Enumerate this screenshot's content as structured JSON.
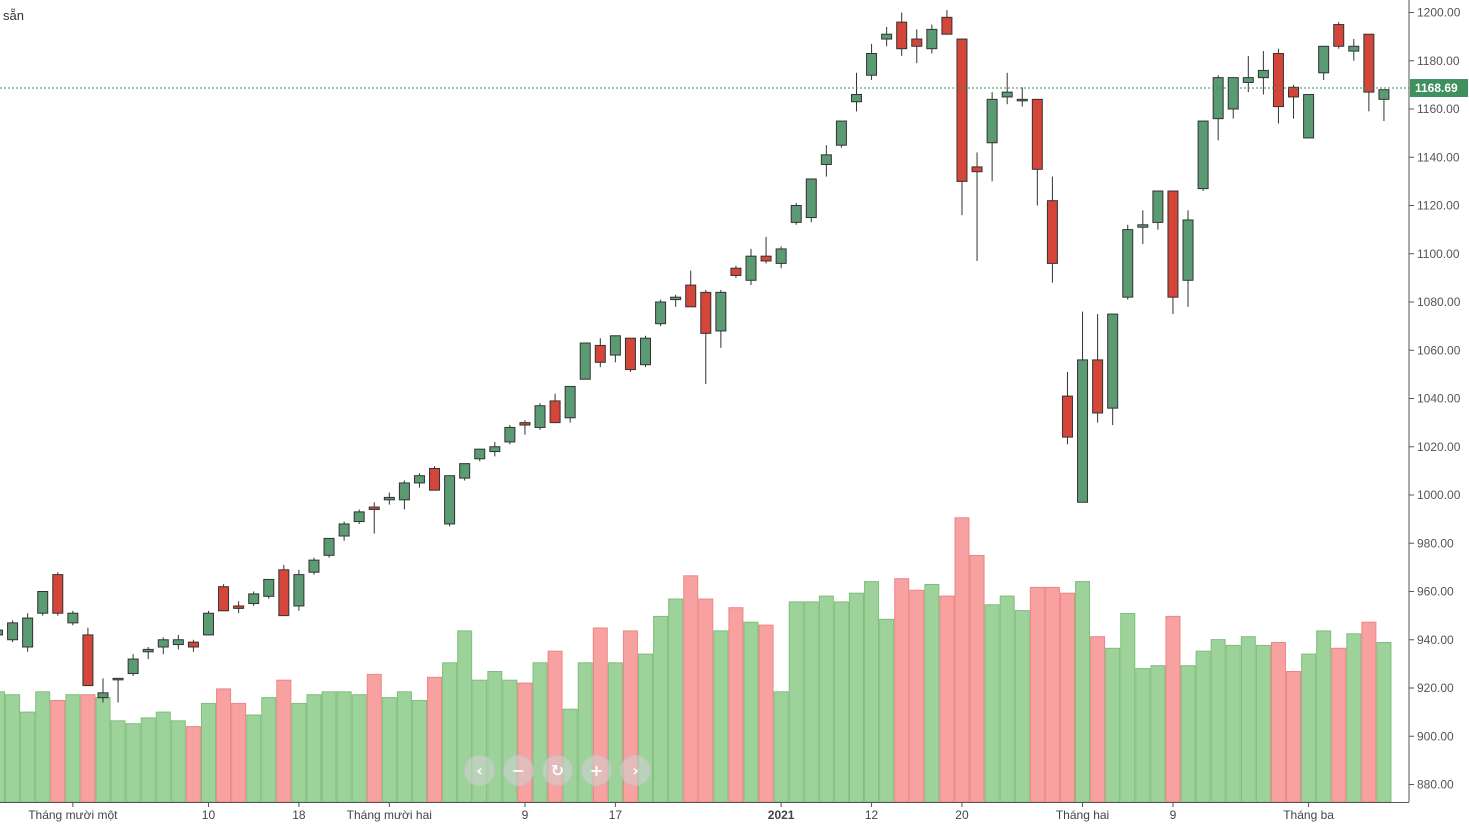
{
  "header": {
    "corner_label": "sẵn"
  },
  "navigation": {
    "buttons": [
      {
        "name": "scroll-left",
        "glyph": "‹"
      },
      {
        "name": "zoom-out",
        "glyph": "−"
      },
      {
        "name": "reset",
        "glyph": "↻"
      },
      {
        "name": "zoom-in",
        "glyph": "+"
      },
      {
        "name": "scroll-right",
        "glyph": "›"
      }
    ]
  },
  "colors": {
    "up_body": "#5b9b73",
    "down_body": "#d5463a",
    "up_volume": "#9ed29b",
    "down_volume": "#f7a1a1",
    "current_price_bg": "#3f8f5f",
    "grid_text": "#555555"
  },
  "chart_data": {
    "type": "candlestick",
    "y_axis": {
      "side": "right",
      "ylim": [
        873,
        1204
      ],
      "ticks": [
        "880.00",
        "900.00",
        "920.00",
        "940.00",
        "960.00",
        "980.00",
        "1000.00",
        "1020.00",
        "1040.00",
        "1060.00",
        "1080.00",
        "1100.00",
        "1120.00",
        "1140.00",
        "1160.00",
        "1180.00",
        "1200.00"
      ]
    },
    "current_price": {
      "value": 1168.69,
      "label": "1168.69"
    },
    "x_axis": {
      "labels": [
        {
          "text": "Tháng mười một",
          "index": 5,
          "bold": false
        },
        {
          "text": "10",
          "index": 14,
          "bold": false
        },
        {
          "text": "18",
          "index": 20,
          "bold": false
        },
        {
          "text": "Tháng mười hai",
          "index": 26,
          "bold": false
        },
        {
          "text": "9",
          "index": 35,
          "bold": false
        },
        {
          "text": "17",
          "index": 41,
          "bold": false
        },
        {
          "text": "2021",
          "index": 52,
          "bold": true
        },
        {
          "text": "12",
          "index": 58,
          "bold": false
        },
        {
          "text": "20",
          "index": 64,
          "bold": false
        },
        {
          "text": "Tháng hai",
          "index": 72,
          "bold": false
        },
        {
          "text": "9",
          "index": 78,
          "bold": false
        },
        {
          "text": "Tháng ba",
          "index": 87,
          "bold": false
        }
      ]
    },
    "candles": [
      [
        0,
        942,
        945,
        941,
        944,
        0.38
      ],
      [
        1,
        940,
        948,
        939,
        947,
        0.37
      ],
      [
        2,
        937,
        951,
        935,
        949,
        0.31
      ],
      [
        3,
        951,
        960,
        950,
        960,
        0.38
      ],
      [
        4,
        967,
        968,
        950,
        951,
        0.35
      ],
      [
        5,
        947,
        952,
        946,
        951,
        0.37
      ],
      [
        6,
        942,
        945,
        922,
        921,
        0.37
      ],
      [
        7,
        916,
        924,
        914,
        918,
        0.36
      ],
      [
        8,
        924,
        924,
        914,
        924,
        0.28
      ],
      [
        9,
        926,
        934,
        925,
        932,
        0.27
      ],
      [
        10,
        935,
        937,
        932,
        936,
        0.29
      ],
      [
        11,
        937,
        941,
        934,
        940,
        0.31
      ],
      [
        12,
        938,
        942,
        936,
        940,
        0.28
      ],
      [
        13,
        939,
        940,
        935,
        937,
        0.26
      ],
      [
        14,
        942,
        952,
        942,
        951,
        0.34
      ],
      [
        15,
        962,
        963,
        952,
        952,
        0.39
      ],
      [
        16,
        954,
        956,
        951,
        953,
        0.34
      ],
      [
        17,
        955,
        960,
        954,
        959,
        0.3
      ],
      [
        18,
        958,
        965,
        957,
        965,
        0.36
      ],
      [
        19,
        969,
        971,
        950,
        950,
        0.42
      ],
      [
        20,
        954,
        969,
        952,
        967,
        0.34
      ],
      [
        21,
        968,
        974,
        967,
        973,
        0.37
      ],
      [
        22,
        975,
        982,
        974,
        982,
        0.38
      ],
      [
        23,
        983,
        989,
        981,
        988,
        0.38
      ],
      [
        24,
        989,
        994,
        988,
        993,
        0.37
      ],
      [
        25,
        995,
        997,
        984,
        994,
        0.44
      ],
      [
        26,
        998,
        1001,
        996,
        999,
        0.36
      ],
      [
        27,
        998,
        1006,
        994,
        1005,
        0.38
      ],
      [
        28,
        1005,
        1009,
        1003,
        1008,
        0.35
      ],
      [
        29,
        1011,
        1012,
        1002,
        1002,
        0.43
      ],
      [
        30,
        988,
        1008,
        987,
        1008,
        0.48
      ],
      [
        31,
        1007,
        1013,
        1006,
        1013,
        0.59
      ],
      [
        32,
        1015,
        1019,
        1014,
        1019,
        0.42
      ],
      [
        33,
        1018,
        1022,
        1016,
        1020,
        0.45
      ],
      [
        34,
        1022,
        1029,
        1021,
        1028,
        0.42
      ],
      [
        35,
        1030,
        1031,
        1025,
        1029,
        0.41
      ],
      [
        36,
        1028,
        1038,
        1027,
        1037,
        0.48
      ],
      [
        37,
        1039,
        1042,
        1030,
        1030,
        0.52
      ],
      [
        38,
        1032,
        1045,
        1030,
        1045,
        0.32
      ],
      [
        39,
        1048,
        1063,
        1048,
        1063,
        0.48
      ],
      [
        40,
        1062,
        1065,
        1053,
        1055,
        0.6
      ],
      [
        41,
        1058,
        1066,
        1055,
        1066,
        0.48
      ],
      [
        42,
        1065,
        1065,
        1051,
        1052,
        0.59
      ],
      [
        43,
        1054,
        1066,
        1053,
        1065,
        0.51
      ],
      [
        44,
        1071,
        1081,
        1070,
        1080,
        0.64
      ],
      [
        45,
        1081,
        1083,
        1078,
        1082,
        0.7
      ],
      [
        46,
        1087,
        1093,
        1078,
        1078,
        0.78
      ],
      [
        47,
        1084,
        1085,
        1046,
        1067,
        0.7
      ],
      [
        48,
        1068,
        1085,
        1061,
        1084,
        0.59
      ],
      [
        49,
        1094,
        1095,
        1090,
        1091,
        0.67
      ],
      [
        50,
        1089,
        1102,
        1087,
        1099,
        0.62
      ],
      [
        51,
        1099,
        1107,
        1096,
        1097,
        0.61
      ],
      [
        52,
        1096,
        1103,
        1094,
        1102,
        0.38
      ],
      [
        53,
        1113,
        1121,
        1112,
        1120,
        0.69
      ],
      [
        54,
        1115,
        1131,
        1113,
        1131,
        0.69
      ],
      [
        55,
        1137,
        1145,
        1132,
        1141,
        0.71
      ],
      [
        56,
        1145,
        1155,
        1144,
        1155,
        0.69
      ],
      [
        57,
        1163,
        1175,
        1159,
        1166,
        0.72
      ],
      [
        58,
        1174,
        1187,
        1172,
        1183,
        0.76
      ],
      [
        59,
        1189,
        1194,
        1186,
        1191,
        0.63
      ],
      [
        60,
        1196,
        1200,
        1182,
        1185,
        0.77
      ],
      [
        61,
        1189,
        1193,
        1179,
        1186,
        0.73
      ],
      [
        62,
        1185,
        1195,
        1183,
        1193,
        0.75
      ],
      [
        63,
        1198,
        1201,
        1191,
        1191,
        0.71
      ],
      [
        64,
        1189,
        1189,
        1116,
        1130,
        0.98
      ],
      [
        65,
        1136,
        1142,
        1097,
        1134,
        0.85
      ],
      [
        66,
        1146,
        1167,
        1130,
        1164,
        0.68
      ],
      [
        67,
        1165,
        1175,
        1162,
        1167,
        0.71
      ],
      [
        68,
        1164,
        1169,
        1161,
        1164,
        0.66
      ],
      [
        69,
        1164,
        1164,
        1120,
        1135,
        0.74
      ],
      [
        70,
        1122,
        1132,
        1088,
        1096,
        0.74
      ],
      [
        71,
        1041,
        1051,
        1021,
        1024,
        0.72
      ],
      [
        72,
        997,
        1076,
        997,
        1056,
        0.76
      ],
      [
        73,
        1056,
        1075,
        1030,
        1034,
        0.57
      ],
      [
        74,
        1036,
        1075,
        1029,
        1075,
        0.53
      ],
      [
        75,
        1082,
        1112,
        1081,
        1110,
        0.65
      ],
      [
        76,
        1111,
        1118,
        1104,
        1112,
        0.46
      ],
      [
        77,
        1113,
        1126,
        1110,
        1126,
        0.47
      ],
      [
        78,
        1126,
        1126,
        1075,
        1082,
        0.64
      ],
      [
        79,
        1089,
        1118,
        1078,
        1114,
        0.47
      ],
      [
        80,
        1127,
        1155,
        1126,
        1155,
        0.52
      ],
      [
        81,
        1156,
        1174,
        1147,
        1173,
        0.56
      ],
      [
        82,
        1160,
        1173,
        1156,
        1173,
        0.54
      ],
      [
        83,
        1171,
        1182,
        1167,
        1173,
        0.57
      ],
      [
        84,
        1173,
        1184,
        1166,
        1176,
        0.54
      ],
      [
        85,
        1183,
        1185,
        1154,
        1161,
        0.55
      ],
      [
        86,
        1169,
        1170,
        1156,
        1165,
        0.45
      ],
      [
        87,
        1148,
        1166,
        1148,
        1166,
        0.51
      ],
      [
        88,
        1175,
        1186,
        1172,
        1186,
        0.59
      ],
      [
        89,
        1195,
        1196,
        1185,
        1186,
        0.53
      ],
      [
        90,
        1184,
        1189,
        1180,
        1186,
        0.58
      ],
      [
        91,
        1191,
        1191,
        1159,
        1167,
        0.62
      ],
      [
        92,
        1164,
        1168,
        1155,
        1168,
        0.55
      ]
    ]
  }
}
